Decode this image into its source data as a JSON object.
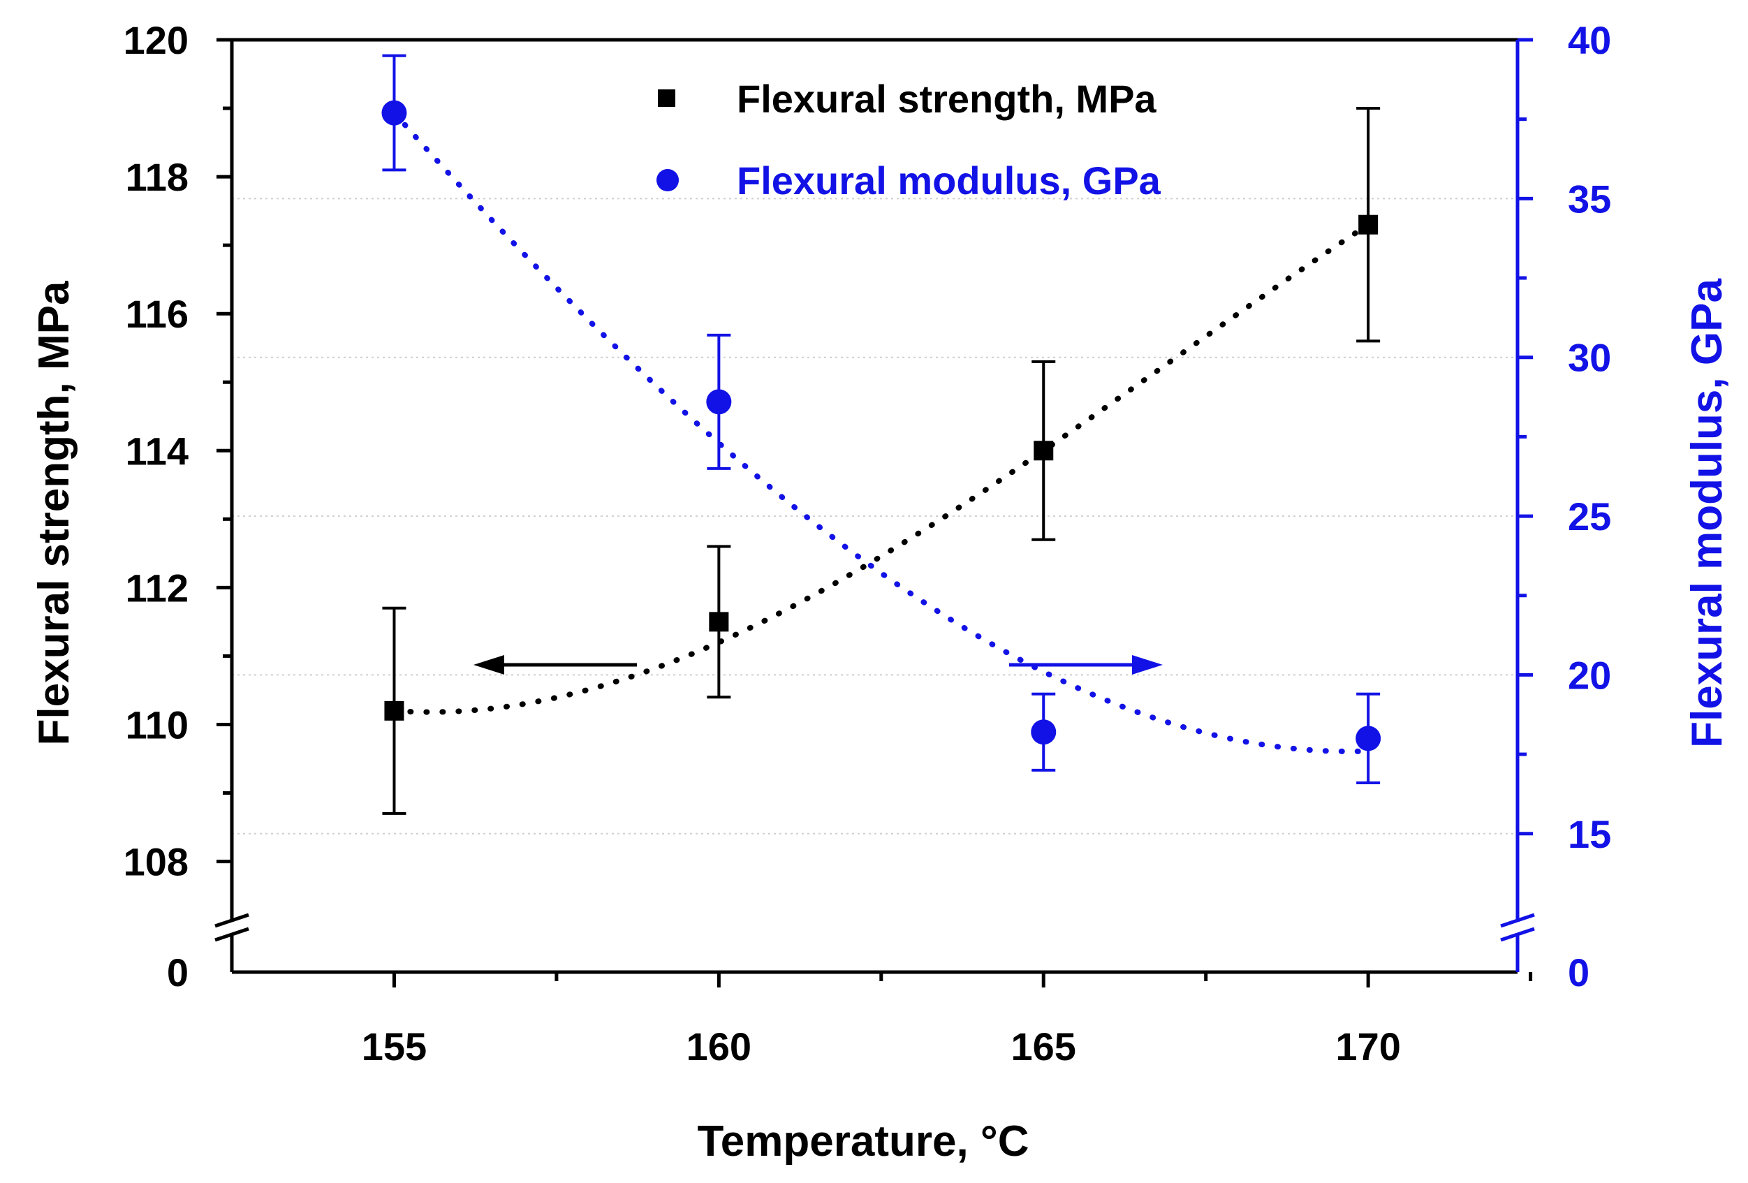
{
  "chart_data": {
    "type": "scatter",
    "x_axis": {
      "label": "Temperature, °C",
      "range": [
        152.5,
        172.3
      ],
      "ticks": [
        "155",
        "160",
        "165",
        "170"
      ]
    },
    "y_left": {
      "label": "Flexural strength, MPa",
      "range": [
        107.2,
        120
      ],
      "ticks": [
        "108",
        "110",
        "112",
        "114",
        "116",
        "118",
        "120"
      ],
      "break_label": "0",
      "color": "#000000"
    },
    "y_right": {
      "label": "Flexural modulus, GPa",
      "range": [
        12.4,
        40
      ],
      "ticks": [
        "15",
        "20",
        "25",
        "30",
        "35",
        "40"
      ],
      "break_label": "0",
      "color": "#1212e6"
    },
    "grid": true,
    "series": [
      {
        "name": "Flexural strength, MPa",
        "axis": "left",
        "marker": "square",
        "color": "#000000",
        "x": [
          155,
          160,
          165,
          170
        ],
        "y": [
          110.2,
          111.5,
          114.0,
          117.3
        ],
        "err": [
          1.5,
          1.1,
          1.3,
          1.7
        ],
        "fit_y": [
          110.2,
          111.2,
          114.0,
          117.3
        ]
      },
      {
        "name": "Flexural modulus, GPa",
        "axis": "right",
        "marker": "circle",
        "color": "#1212e6",
        "x": [
          155,
          160,
          165,
          170
        ],
        "y": [
          37.7,
          28.6,
          18.2,
          18.0
        ],
        "err": [
          1.8,
          2.1,
          1.2,
          1.4
        ],
        "fit_y": [
          37.7,
          27.3,
          20.1,
          17.6
        ]
      }
    ],
    "legend": {
      "position": "top-center",
      "items": [
        "Flexural strength, MPa",
        "Flexural modulus, GPa"
      ]
    },
    "annotations": [
      {
        "type": "arrow",
        "direction": "left",
        "meaning": "left axis"
      },
      {
        "type": "arrow",
        "direction": "right",
        "meaning": "right axis"
      }
    ]
  }
}
